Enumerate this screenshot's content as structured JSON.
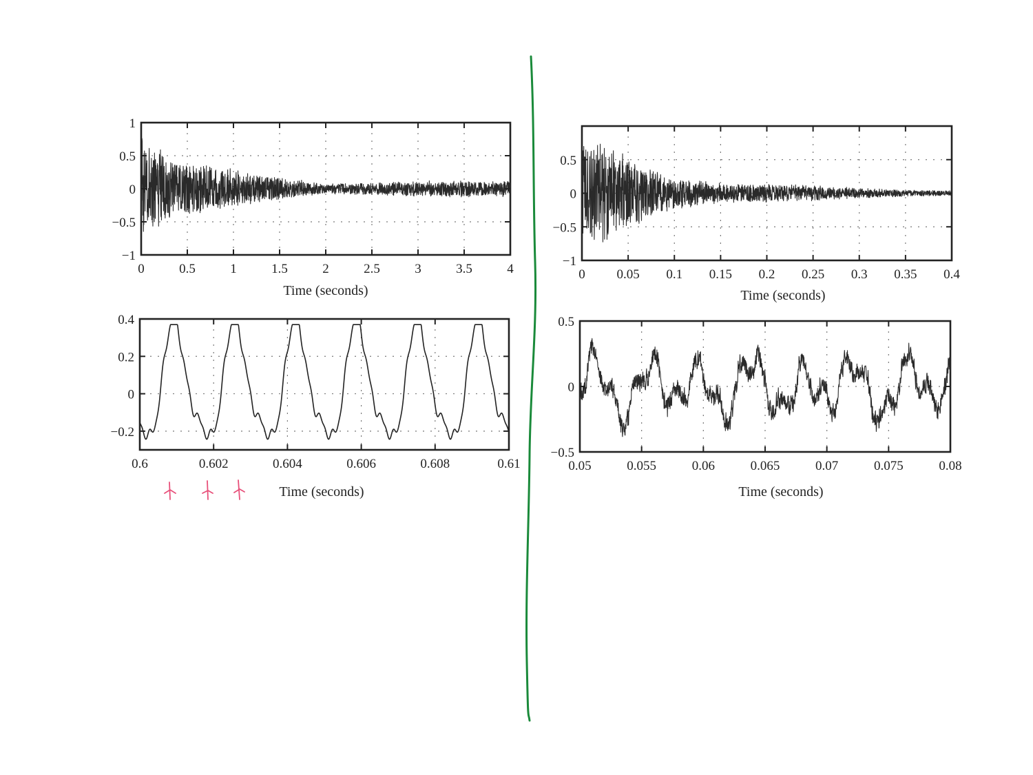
{
  "chart_data": [
    {
      "id": "left-top",
      "type": "line",
      "title": "",
      "xlabel": "Time (seconds)",
      "ylabel": "",
      "xlim": [
        0,
        4
      ],
      "ylim": [
        -1,
        1
      ],
      "xticks": [
        "0",
        "0.5",
        "1",
        "1.5",
        "2",
        "2.5",
        "3",
        "3.5",
        "4"
      ],
      "yticks": [
        "1",
        "0.5",
        "0",
        "−0.5",
        "−1"
      ],
      "grid": true,
      "series": [
        {
          "description_note": "",
          "envelope": {
            "t": [
              0,
              0.1,
              0.3,
              0.6,
              1.0,
              1.5,
              2.0,
              2.5,
              3.0,
              3.5,
              4.0
            ],
            "amplitude": [
              0.9,
              0.72,
              0.5,
              0.4,
              0.3,
              0.18,
              0.08,
              0.1,
              0.12,
              0.13,
              0.12
            ]
          }
        }
      ]
    },
    {
      "id": "left-bottom",
      "type": "line",
      "title": "",
      "xlabel": "Time (seconds)",
      "ylabel": "",
      "xlim": [
        0.6,
        0.61
      ],
      "ylim": [
        -0.3,
        0.4
      ],
      "xticks": [
        "0.6",
        "0.602",
        "0.604",
        "0.606",
        "0.608",
        "0.61"
      ],
      "yticks": [
        "0.4",
        "0.2",
        "0",
        "−0.2"
      ],
      "grid": true,
      "series": [
        {
          "period_seconds": 0.00165,
          "peak": 0.37,
          "trough": -0.27
        }
      ]
    },
    {
      "id": "right-top",
      "type": "line",
      "title": "",
      "xlabel": "Time (seconds)",
      "ylabel": "",
      "xlim": [
        0,
        0.4
      ],
      "ylim": [
        -1,
        1
      ],
      "xticks": [
        "0",
        "0.05",
        "0.1",
        "0.15",
        "0.2",
        "0.25",
        "0.3",
        "0.35",
        "0.4"
      ],
      "yticks": [
        "0.5",
        "0",
        "−0.5",
        "−1"
      ],
      "grid": true,
      "series": [
        {
          "envelope": {
            "t": [
              0,
              0.02,
              0.05,
              0.1,
              0.15,
              0.2,
              0.25,
              0.3,
              0.35,
              0.4
            ],
            "amplitude": [
              0.75,
              0.8,
              0.55,
              0.25,
              0.15,
              0.14,
              0.12,
              0.08,
              0.05,
              0.04
            ]
          }
        }
      ]
    },
    {
      "id": "right-bottom",
      "type": "line",
      "title": "",
      "xlabel": "Time (seconds)",
      "ylabel": "",
      "xlim": [
        0.05,
        0.08
      ],
      "ylim": [
        -0.5,
        0.5
      ],
      "xticks": [
        "0.05",
        "0.055",
        "0.06",
        "0.065",
        "0.07",
        "0.075",
        "0.08"
      ],
      "yticks": [
        "0.5",
        "0",
        "−0.5"
      ],
      "grid": true,
      "series": [
        {
          "range": [
            -0.5,
            0.45
          ]
        }
      ]
    }
  ]
}
